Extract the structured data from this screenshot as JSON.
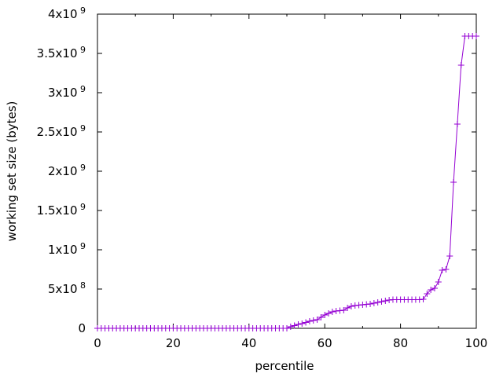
{
  "chart_data": {
    "type": "line",
    "title": "",
    "xlabel": "percentile",
    "ylabel": "working set size (bytes)",
    "xlim": [
      0,
      100
    ],
    "ylim": [
      0,
      4000000000
    ],
    "grid": false,
    "legend": "none",
    "x_ticks": [
      {
        "value": 0,
        "label": "0"
      },
      {
        "value": 20,
        "label": "20"
      },
      {
        "value": 40,
        "label": "40"
      },
      {
        "value": 60,
        "label": "60"
      },
      {
        "value": 80,
        "label": "80"
      },
      {
        "value": 100,
        "label": "100"
      }
    ],
    "y_ticks": [
      {
        "value": 0,
        "mantissa": "0",
        "exp": ""
      },
      {
        "value": 500000000,
        "mantissa": "5x10",
        "exp": "8"
      },
      {
        "value": 1000000000,
        "mantissa": "1x10",
        "exp": "9"
      },
      {
        "value": 1500000000,
        "mantissa": "1.5x10",
        "exp": "9"
      },
      {
        "value": 2000000000,
        "mantissa": "2x10",
        "exp": "9"
      },
      {
        "value": 2500000000,
        "mantissa": "2.5x10",
        "exp": "9"
      },
      {
        "value": 3000000000,
        "mantissa": "3x10",
        "exp": "9"
      },
      {
        "value": 3500000000,
        "mantissa": "3.5x10",
        "exp": "9"
      },
      {
        "value": 4000000000,
        "mantissa": "4x10",
        "exp": "9"
      }
    ],
    "series": [
      {
        "color": "#9400d3",
        "marker": "plus",
        "x": [
          0,
          1,
          2,
          3,
          4,
          5,
          6,
          7,
          8,
          9,
          10,
          11,
          12,
          13,
          14,
          15,
          16,
          17,
          18,
          19,
          20,
          21,
          22,
          23,
          24,
          25,
          26,
          27,
          28,
          29,
          30,
          31,
          32,
          33,
          34,
          35,
          36,
          37,
          38,
          39,
          40,
          41,
          42,
          43,
          44,
          45,
          46,
          47,
          48,
          49,
          50,
          51,
          52,
          53,
          54,
          55,
          56,
          57,
          58,
          59,
          60,
          61,
          62,
          63,
          64,
          65,
          66,
          67,
          68,
          69,
          70,
          71,
          72,
          73,
          74,
          75,
          76,
          77,
          78,
          79,
          80,
          81,
          82,
          83,
          84,
          85,
          86,
          87,
          88,
          89,
          90,
          91,
          92,
          93,
          94,
          95,
          96,
          97,
          98,
          99,
          100
        ],
        "y": [
          0,
          0,
          0,
          0,
          0,
          0,
          0,
          0,
          0,
          0,
          0,
          0,
          0,
          0,
          0,
          0,
          0,
          0,
          0,
          0,
          0,
          0,
          0,
          0,
          0,
          0,
          0,
          0,
          0,
          0,
          0,
          0,
          0,
          0,
          0,
          0,
          0,
          0,
          0,
          0,
          0,
          0,
          0,
          0,
          0,
          0,
          0,
          0,
          0,
          0,
          0,
          20000000,
          35000000,
          50000000,
          60000000,
          75000000,
          90000000,
          100000000,
          110000000,
          140000000,
          170000000,
          190000000,
          210000000,
          220000000,
          225000000,
          230000000,
          260000000,
          280000000,
          290000000,
          295000000,
          300000000,
          305000000,
          310000000,
          320000000,
          330000000,
          340000000,
          350000000,
          360000000,
          365000000,
          365000000,
          365000000,
          365000000,
          365000000,
          365000000,
          365000000,
          365000000,
          370000000,
          440000000,
          490000000,
          510000000,
          590000000,
          740000000,
          750000000,
          920000000,
          1860000000,
          2600000000,
          3350000000,
          3720000000,
          3720000000,
          3720000000,
          3720000000
        ]
      }
    ]
  }
}
